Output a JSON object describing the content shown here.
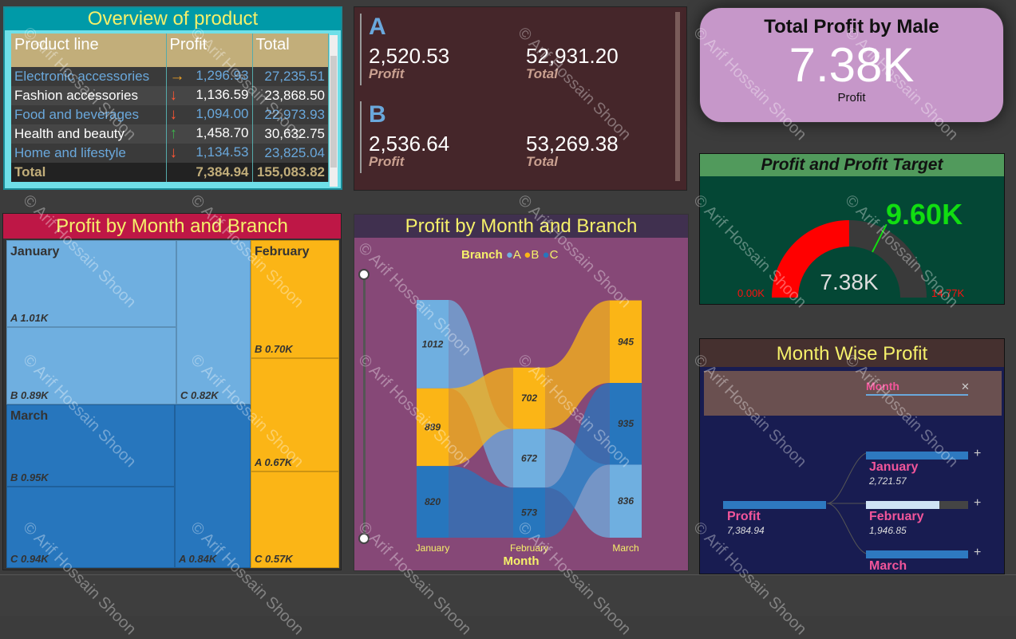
{
  "watermark": "© Arif Hossain Shoon",
  "overview": {
    "title": "Overview of product",
    "columns": [
      "Product line",
      "Profit",
      "Total"
    ],
    "rows": [
      {
        "name": "Electronic accessories",
        "trend": "flat",
        "profit": "1,296.93",
        "total": "27,235.51"
      },
      {
        "name": "Fashion accessories",
        "trend": "down",
        "profit": "1,136.59",
        "total": "23,868.50"
      },
      {
        "name": "Food and beverages",
        "trend": "down",
        "profit": "1,094.00",
        "total": "22,973.93"
      },
      {
        "name": "Health and beauty",
        "trend": "up",
        "profit": "1,458.70",
        "total": "30,632.75"
      },
      {
        "name": "Home and lifestyle",
        "trend": "down",
        "profit": "1,134.53",
        "total": "23,825.04"
      }
    ],
    "total": {
      "label": "Total",
      "profit": "7,384.94",
      "total": "155,083.82"
    }
  },
  "branches": [
    {
      "name": "A",
      "profit": "2,520.53",
      "profit_label": "Profit",
      "total": "52,931.20",
      "total_label": "Total"
    },
    {
      "name": "B",
      "profit": "2,536.64",
      "profit_label": "Profit",
      "total": "53,269.38",
      "total_label": "Total"
    }
  ],
  "male_card": {
    "title": "Total Profit by Male",
    "value": "7.38K",
    "label": "Profit"
  },
  "gauge": {
    "title": "Profit and Profit Target",
    "value": 7.38,
    "value_label": "7.38K",
    "target": 9.6,
    "target_label": "9.60K",
    "min_label": "0.00K",
    "max": 14.77,
    "max_label": "14.77K",
    "colors": {
      "fill": "#ff0000",
      "track": "#3a3a3a",
      "target": "#11dd11"
    }
  },
  "treemap": {
    "title": "Profit by Month and Branch",
    "groups": [
      {
        "month": "January",
        "color": "#6fafe0",
        "cells": [
          {
            "label": "A 1.01K"
          },
          {
            "label": "B 0.89K"
          },
          {
            "label": "C 0.82K"
          }
        ]
      },
      {
        "month": "March",
        "color": "#2776bd",
        "cells": [
          {
            "label": "B 0.95K"
          },
          {
            "label": "C 0.94K"
          },
          {
            "label": "A 0.84K"
          }
        ]
      },
      {
        "month": "February",
        "color": "#fbb516",
        "cells": [
          {
            "label": "B 0.70K"
          },
          {
            "label": "A 0.67K"
          },
          {
            "label": "C 0.57K"
          }
        ]
      }
    ]
  },
  "chart_data": {
    "type": "ribbon",
    "title": "Profit by Month and Branch",
    "legend_title": "Branch",
    "legend": [
      {
        "name": "A",
        "color": "#6fafe0"
      },
      {
        "name": "B",
        "color": "#fbb516"
      },
      {
        "name": "C",
        "color": "#2776bd"
      }
    ],
    "xlabel": "Month",
    "categories": [
      "January",
      "February",
      "March"
    ],
    "series": [
      {
        "name": "A",
        "values": [
          1012,
          672,
          836
        ]
      },
      {
        "name": "B",
        "values": [
          889,
          702,
          945
        ]
      },
      {
        "name": "C",
        "values": [
          820,
          573,
          935
        ]
      }
    ]
  },
  "decomp": {
    "title": "Month Wise Profit",
    "filter_label": "Month",
    "root": {
      "name": "Profit",
      "value": "7,384.94"
    },
    "children": [
      {
        "name": "January",
        "value": "2,721.57",
        "fraction": 1.0
      },
      {
        "name": "February",
        "value": "1,946.85",
        "fraction": 0.72
      },
      {
        "name": "March",
        "value": "",
        "fraction": 1.0
      }
    ]
  }
}
